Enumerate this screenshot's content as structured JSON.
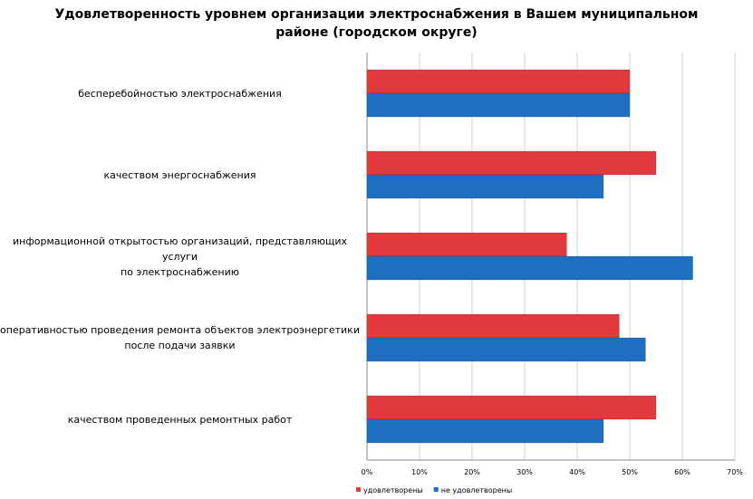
{
  "chart_data": {
    "type": "bar",
    "orientation": "horizontal",
    "title": "Удовлетворенность уровнем организации электроснабжения в Вашем муниципальном\nрайоне (городском округе)",
    "categories": [
      "бесперебойностью электроснабжения",
      "качеством энергоснабжения",
      "информационной открытостью организаций, представляющих услуги\nпо электроснабжению",
      "оперативностью проведения  ремонта объектов  электроэнергетики\nпосле подачи заявки",
      "качеством проведенных ремонтных работ"
    ],
    "series": [
      {
        "name": "удовлетворены",
        "color": "#e2393d",
        "values": [
          50,
          55,
          38,
          48,
          55
        ]
      },
      {
        "name": "не удовлетворены",
        "color": "#1f6fc1",
        "values": [
          50,
          45,
          62,
          53,
          45
        ]
      }
    ],
    "xlim": [
      0,
      70
    ],
    "xticks": [
      {
        "value": 0,
        "label": "0%"
      },
      {
        "value": 10,
        "label": "10%"
      },
      {
        "value": 20,
        "label": "20%"
      },
      {
        "value": 30,
        "label": "30%"
      },
      {
        "value": 40,
        "label": "40%"
      },
      {
        "value": 50,
        "label": "50%"
      },
      {
        "value": 60,
        "label": "60%"
      },
      {
        "value": 70,
        "label": "70%"
      }
    ],
    "grid": true
  }
}
